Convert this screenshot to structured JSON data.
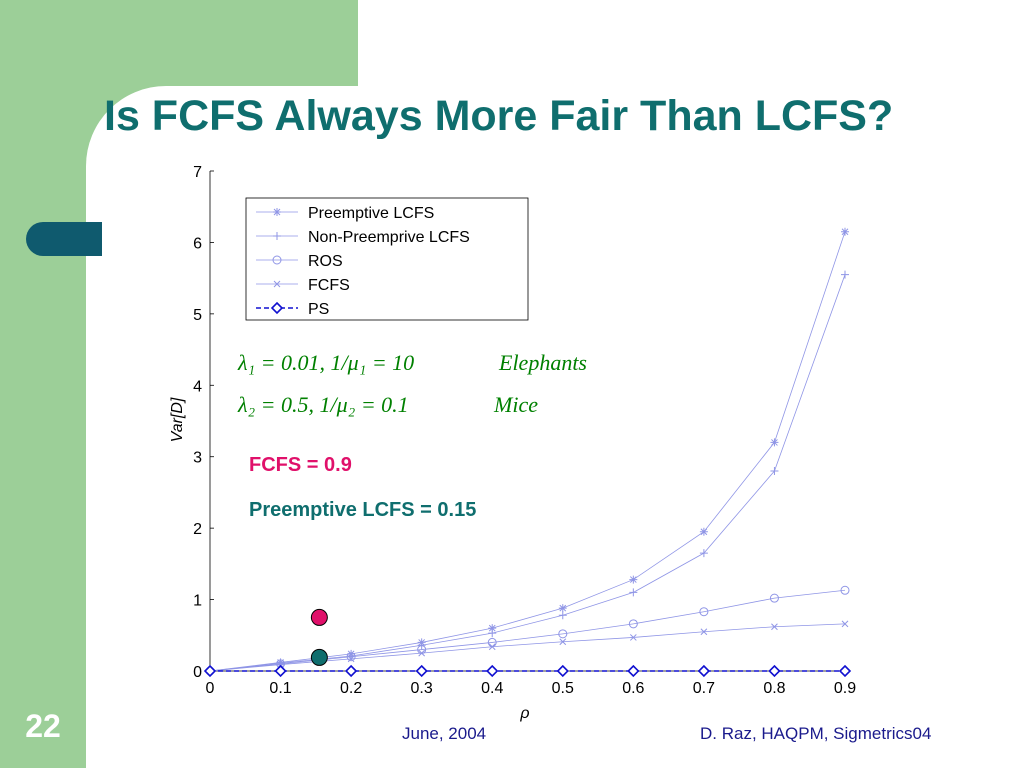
{
  "slide": {
    "title": "Is FCFS Always More Fair Than LCFS?",
    "number": "22",
    "footer_date": "June, 2004",
    "footer_author": "D. Raz, HAQPM, Sigmetrics04"
  },
  "chart_data": {
    "type": "line",
    "xlabel": "ρ",
    "ylabel": "Var[D]",
    "xlim": [
      0,
      0.9
    ],
    "ylim": [
      0,
      7
    ],
    "x_ticks": [
      "0",
      "0.1",
      "0.2",
      "0.3",
      "0.4",
      "0.5",
      "0.6",
      "0.7",
      "0.8",
      "0.9"
    ],
    "y_ticks": [
      "0",
      "1",
      "2",
      "3",
      "4",
      "5",
      "6",
      "7"
    ],
    "legend_position": "top-left",
    "x": [
      0,
      0.1,
      0.2,
      0.3,
      0.4,
      0.5,
      0.6,
      0.7,
      0.8,
      0.9
    ],
    "series": [
      {
        "name": "Preemptive LCFS",
        "color": "#8f95e6",
        "marker": "star",
        "values": [
          0,
          0.12,
          0.24,
          0.4,
          0.6,
          0.88,
          1.28,
          1.95,
          3.2,
          6.15
        ]
      },
      {
        "name": "Non-Preemprive LCFS",
        "color": "#8f95e6",
        "marker": "plus",
        "values": [
          0,
          0.11,
          0.21,
          0.36,
          0.53,
          0.78,
          1.1,
          1.65,
          2.8,
          5.55
        ]
      },
      {
        "name": "ROS",
        "color": "#8f95e6",
        "marker": "circle",
        "values": [
          0,
          0.1,
          0.2,
          0.3,
          0.4,
          0.52,
          0.66,
          0.83,
          1.02,
          1.13
        ]
      },
      {
        "name": "FCFS",
        "color": "#8f95e6",
        "marker": "x",
        "values": [
          0,
          0.09,
          0.17,
          0.25,
          0.34,
          0.41,
          0.47,
          0.55,
          0.62,
          0.66
        ]
      },
      {
        "name": "PS",
        "color": "#1010d0",
        "marker": "diamond",
        "dashed": true,
        "values": [
          0,
          0,
          0,
          0,
          0,
          0,
          0,
          0,
          0,
          0
        ]
      }
    ],
    "highlight_points": [
      {
        "x": 0.155,
        "y": 0.75,
        "color": "#e0106a"
      },
      {
        "x": 0.155,
        "y": 0.19,
        "color": "#0f6e6e"
      }
    ],
    "annotations": {
      "formula_line_1": "λ₁ = 0.01,    1/μ₁ = 10",
      "formula_label_1": "Elephants",
      "formula_line_2": "λ₂ = 0.5,      1/μ₂ = 0.1",
      "formula_label_2": "Mice",
      "fcfs_value": "FCFS = 0.9",
      "lcfs_value": "Preemptive LCFS = 0.15"
    }
  }
}
